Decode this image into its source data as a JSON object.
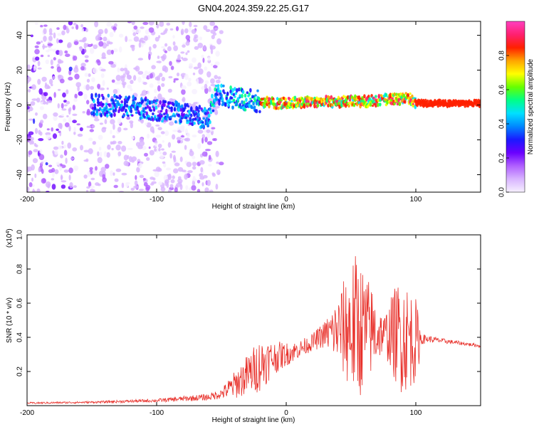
{
  "title": "GN04.2024.359.22.25.G17",
  "chart_data": [
    {
      "type": "heatmap",
      "title": "GN04.2024.359.22.25.G17",
      "xlabel": "Height of straight line (km)",
      "ylabel": "Frequency (Hz)",
      "xlim": [
        -200,
        150
      ],
      "ylim": [
        -50,
        48
      ],
      "xticks": [
        -200,
        -100,
        0,
        100
      ],
      "xtick_labels": [
        "-200",
        "-100",
        "0",
        "100"
      ],
      "yticks": [
        -40,
        -20,
        0,
        20,
        40
      ],
      "ytick_labels": [
        "-40",
        "-20",
        "0",
        "20",
        "40"
      ],
      "ridge": {
        "x": [
          -150,
          -120,
          -100,
          -80,
          -60,
          -55,
          -50,
          -40,
          -30,
          -20,
          -10,
          0,
          20,
          40,
          60,
          80,
          95,
          100,
          120,
          150
        ],
        "freq": [
          0,
          -1,
          -3,
          -5,
          -8,
          5,
          6,
          4,
          3,
          2,
          1,
          1,
          2,
          2,
          2,
          3,
          4,
          1,
          1,
          1
        ]
      },
      "colorbar": {
        "label": "Normalized spectral amplitude",
        "ticks": [
          0.0,
          0.2,
          0.4,
          0.6,
          0.8
        ],
        "tick_labels": [
          "0.0",
          "0.2",
          "0.4",
          "0.6",
          "0.8"
        ],
        "range": [
          0,
          1
        ],
        "colors": [
          "#f6f0ff",
          "#d8b4ff",
          "#b060ff",
          "#6a00ff",
          "#1a1aff",
          "#0088ff",
          "#00e0ff",
          "#00ff88",
          "#66ff00",
          "#ffff00",
          "#ffa500",
          "#ff2000",
          "#ff2070",
          "#ff40c0"
        ]
      }
    },
    {
      "type": "line",
      "xlabel": "Height of straight line (km)",
      "ylabel": "SNR (10 * v/v)",
      "scale_label": "(x10",
      "scale_exp": "4",
      "scale_close": ")",
      "xlim": [
        -200,
        150
      ],
      "ylim": [
        0,
        1.0
      ],
      "xticks": [
        -200,
        -100,
        0,
        100
      ],
      "xtick_labels": [
        "-200",
        "-100",
        "0",
        "100"
      ],
      "yticks": [
        0.2,
        0.4,
        0.6,
        0.8,
        1.0
      ],
      "ytick_labels": [
        "0.2",
        "0.4",
        "0.6",
        "0.8",
        "1.0"
      ],
      "series": [
        {
          "name": "SNR",
          "color": "#e8302a",
          "envelope_x": [
            -200,
            -150,
            -100,
            -80,
            -60,
            -50,
            -40,
            -30,
            -20,
            -10,
            0,
            10,
            20,
            30,
            40,
            45,
            50,
            55,
            60,
            65,
            70,
            75,
            80,
            85,
            90,
            95,
            100,
            105,
            110,
            120,
            130,
            140,
            150
          ],
          "envelope_base": [
            0.015,
            0.02,
            0.03,
            0.04,
            0.05,
            0.07,
            0.12,
            0.18,
            0.24,
            0.28,
            0.3,
            0.33,
            0.37,
            0.42,
            0.44,
            0.45,
            0.46,
            0.46,
            0.45,
            0.44,
            0.43,
            0.42,
            0.42,
            0.42,
            0.41,
            0.4,
            0.38,
            0.39,
            0.39,
            0.38,
            0.37,
            0.36,
            0.35
          ],
          "envelope_amp": [
            0.005,
            0.006,
            0.01,
            0.015,
            0.02,
            0.03,
            0.08,
            0.12,
            0.16,
            0.1,
            0.07,
            0.05,
            0.05,
            0.08,
            0.2,
            0.3,
            0.4,
            0.45,
            0.35,
            0.28,
            0.2,
            0.1,
            0.2,
            0.3,
            0.35,
            0.3,
            0.25,
            0.03,
            0.02,
            0.015,
            0.012,
            0.01,
            0.01
          ]
        }
      ]
    }
  ]
}
